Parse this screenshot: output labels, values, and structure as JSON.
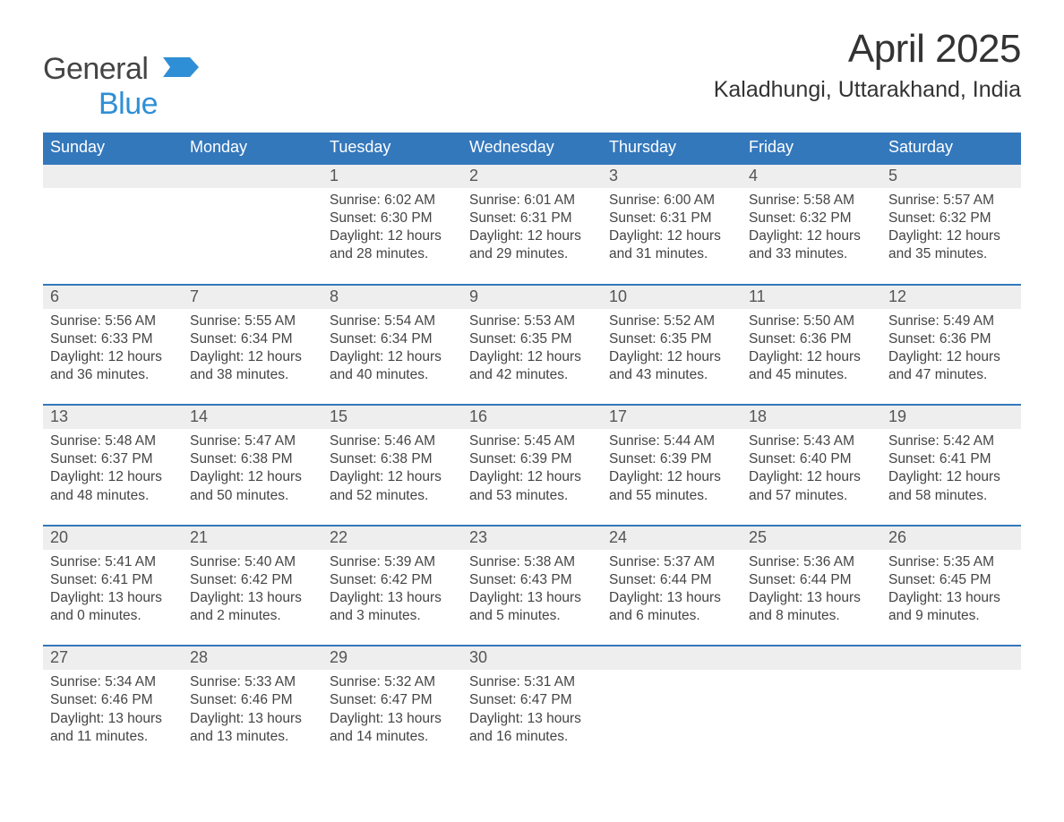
{
  "brand": {
    "name_part1": "General",
    "name_part2": "Blue",
    "colors": {
      "gray": "#444444",
      "blue": "#2f8fd6"
    }
  },
  "title": "April 2025",
  "location": "Kaladhungi, Uttarakhand, India",
  "layout": {
    "header_bg": "#3478bc",
    "header_text": "#ffffff",
    "daynum_bg": "#eeeeee",
    "daynum_border": "#3478bc",
    "body_text": "#444444",
    "font_family": "Segoe UI, Arial, sans-serif",
    "title_fontsize": 44,
    "location_fontsize": 25,
    "weekday_fontsize": 18,
    "daynum_fontsize": 18,
    "cell_fontsize": 15.5
  },
  "weekdays": [
    "Sunday",
    "Monday",
    "Tuesday",
    "Wednesday",
    "Thursday",
    "Friday",
    "Saturday"
  ],
  "weeks": [
    [
      {
        "day": "",
        "sunrise": "",
        "sunset": "",
        "daylight": ""
      },
      {
        "day": "",
        "sunrise": "",
        "sunset": "",
        "daylight": ""
      },
      {
        "day": "1",
        "sunrise": "Sunrise: 6:02 AM",
        "sunset": "Sunset: 6:30 PM",
        "daylight": "Daylight: 12 hours and 28 minutes."
      },
      {
        "day": "2",
        "sunrise": "Sunrise: 6:01 AM",
        "sunset": "Sunset: 6:31 PM",
        "daylight": "Daylight: 12 hours and 29 minutes."
      },
      {
        "day": "3",
        "sunrise": "Sunrise: 6:00 AM",
        "sunset": "Sunset: 6:31 PM",
        "daylight": "Daylight: 12 hours and 31 minutes."
      },
      {
        "day": "4",
        "sunrise": "Sunrise: 5:58 AM",
        "sunset": "Sunset: 6:32 PM",
        "daylight": "Daylight: 12 hours and 33 minutes."
      },
      {
        "day": "5",
        "sunrise": "Sunrise: 5:57 AM",
        "sunset": "Sunset: 6:32 PM",
        "daylight": "Daylight: 12 hours and 35 minutes."
      }
    ],
    [
      {
        "day": "6",
        "sunrise": "Sunrise: 5:56 AM",
        "sunset": "Sunset: 6:33 PM",
        "daylight": "Daylight: 12 hours and 36 minutes."
      },
      {
        "day": "7",
        "sunrise": "Sunrise: 5:55 AM",
        "sunset": "Sunset: 6:34 PM",
        "daylight": "Daylight: 12 hours and 38 minutes."
      },
      {
        "day": "8",
        "sunrise": "Sunrise: 5:54 AM",
        "sunset": "Sunset: 6:34 PM",
        "daylight": "Daylight: 12 hours and 40 minutes."
      },
      {
        "day": "9",
        "sunrise": "Sunrise: 5:53 AM",
        "sunset": "Sunset: 6:35 PM",
        "daylight": "Daylight: 12 hours and 42 minutes."
      },
      {
        "day": "10",
        "sunrise": "Sunrise: 5:52 AM",
        "sunset": "Sunset: 6:35 PM",
        "daylight": "Daylight: 12 hours and 43 minutes."
      },
      {
        "day": "11",
        "sunrise": "Sunrise: 5:50 AM",
        "sunset": "Sunset: 6:36 PM",
        "daylight": "Daylight: 12 hours and 45 minutes."
      },
      {
        "day": "12",
        "sunrise": "Sunrise: 5:49 AM",
        "sunset": "Sunset: 6:36 PM",
        "daylight": "Daylight: 12 hours and 47 minutes."
      }
    ],
    [
      {
        "day": "13",
        "sunrise": "Sunrise: 5:48 AM",
        "sunset": "Sunset: 6:37 PM",
        "daylight": "Daylight: 12 hours and 48 minutes."
      },
      {
        "day": "14",
        "sunrise": "Sunrise: 5:47 AM",
        "sunset": "Sunset: 6:38 PM",
        "daylight": "Daylight: 12 hours and 50 minutes."
      },
      {
        "day": "15",
        "sunrise": "Sunrise: 5:46 AM",
        "sunset": "Sunset: 6:38 PM",
        "daylight": "Daylight: 12 hours and 52 minutes."
      },
      {
        "day": "16",
        "sunrise": "Sunrise: 5:45 AM",
        "sunset": "Sunset: 6:39 PM",
        "daylight": "Daylight: 12 hours and 53 minutes."
      },
      {
        "day": "17",
        "sunrise": "Sunrise: 5:44 AM",
        "sunset": "Sunset: 6:39 PM",
        "daylight": "Daylight: 12 hours and 55 minutes."
      },
      {
        "day": "18",
        "sunrise": "Sunrise: 5:43 AM",
        "sunset": "Sunset: 6:40 PM",
        "daylight": "Daylight: 12 hours and 57 minutes."
      },
      {
        "day": "19",
        "sunrise": "Sunrise: 5:42 AM",
        "sunset": "Sunset: 6:41 PM",
        "daylight": "Daylight: 12 hours and 58 minutes."
      }
    ],
    [
      {
        "day": "20",
        "sunrise": "Sunrise: 5:41 AM",
        "sunset": "Sunset: 6:41 PM",
        "daylight": "Daylight: 13 hours and 0 minutes."
      },
      {
        "day": "21",
        "sunrise": "Sunrise: 5:40 AM",
        "sunset": "Sunset: 6:42 PM",
        "daylight": "Daylight: 13 hours and 2 minutes."
      },
      {
        "day": "22",
        "sunrise": "Sunrise: 5:39 AM",
        "sunset": "Sunset: 6:42 PM",
        "daylight": "Daylight: 13 hours and 3 minutes."
      },
      {
        "day": "23",
        "sunrise": "Sunrise: 5:38 AM",
        "sunset": "Sunset: 6:43 PM",
        "daylight": "Daylight: 13 hours and 5 minutes."
      },
      {
        "day": "24",
        "sunrise": "Sunrise: 5:37 AM",
        "sunset": "Sunset: 6:44 PM",
        "daylight": "Daylight: 13 hours and 6 minutes."
      },
      {
        "day": "25",
        "sunrise": "Sunrise: 5:36 AM",
        "sunset": "Sunset: 6:44 PM",
        "daylight": "Daylight: 13 hours and 8 minutes."
      },
      {
        "day": "26",
        "sunrise": "Sunrise: 5:35 AM",
        "sunset": "Sunset: 6:45 PM",
        "daylight": "Daylight: 13 hours and 9 minutes."
      }
    ],
    [
      {
        "day": "27",
        "sunrise": "Sunrise: 5:34 AM",
        "sunset": "Sunset: 6:46 PM",
        "daylight": "Daylight: 13 hours and 11 minutes."
      },
      {
        "day": "28",
        "sunrise": "Sunrise: 5:33 AM",
        "sunset": "Sunset: 6:46 PM",
        "daylight": "Daylight: 13 hours and 13 minutes."
      },
      {
        "day": "29",
        "sunrise": "Sunrise: 5:32 AM",
        "sunset": "Sunset: 6:47 PM",
        "daylight": "Daylight: 13 hours and 14 minutes."
      },
      {
        "day": "30",
        "sunrise": "Sunrise: 5:31 AM",
        "sunset": "Sunset: 6:47 PM",
        "daylight": "Daylight: 13 hours and 16 minutes."
      },
      {
        "day": "",
        "sunrise": "",
        "sunset": "",
        "daylight": ""
      },
      {
        "day": "",
        "sunrise": "",
        "sunset": "",
        "daylight": ""
      },
      {
        "day": "",
        "sunrise": "",
        "sunset": "",
        "daylight": ""
      }
    ]
  ]
}
